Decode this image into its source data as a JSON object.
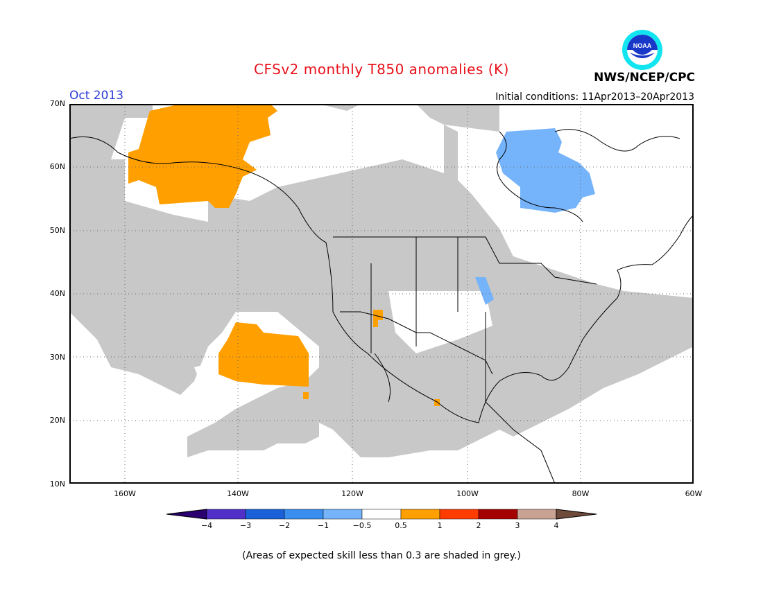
{
  "title": "CFSv2 monthly T850 anomalies (K)",
  "agency": "NWS/NCEP/CPC",
  "logo_text": "NOAA",
  "valid_month": "Oct 2013",
  "initial_conditions": "Initial conditions: 11Apr2013–20Apr2013",
  "footnote": "(Areas of expected skill less than 0.3 are shaded in grey.)",
  "map": {
    "lon_range": [
      "172W",
      "60W"
    ],
    "lat_range": [
      "10N",
      "70N"
    ],
    "lat_labels": [
      "70N",
      "60N",
      "50N",
      "40N",
      "30N",
      "20N",
      "10N"
    ],
    "lon_labels": [
      "160W",
      "140W",
      "120W",
      "100W",
      "80W",
      "60W"
    ],
    "low_skill_color": "#c8c8c8",
    "anomaly_regions": [
      {
        "region": "Alaska / Yukon",
        "category": "0.5 to 1",
        "color": "#ff9f00"
      },
      {
        "region": "Northeast Pacific near 30N 135W",
        "category": "0.5 to 1",
        "color": "#ff9f00"
      },
      {
        "region": "Southwest US near 36N 115W",
        "category": "0.5 to 1",
        "color": "#ff9f00"
      },
      {
        "region": "Western Mexico near 23N 105W",
        "category": "0.5 to 1",
        "color": "#ff9f00"
      },
      {
        "region": "Hudson Bay / northern Quebec",
        "category": "-1 to -0.5",
        "color": "#75b4fa"
      },
      {
        "region": "Iowa / Nebraska border",
        "category": "-1 to -0.5",
        "color": "#75b4fa"
      }
    ]
  },
  "colorbar": {
    "labels": [
      "−4",
      "−3",
      "−2",
      "−1",
      "−0.5",
      "0.5",
      "1",
      "2",
      "3",
      "4"
    ],
    "colors": [
      "#2a0070",
      "#5030c8",
      "#1a60d8",
      "#3a8ef0",
      "#75b4fa",
      "#ffffff",
      "#ff9f00",
      "#ff3c00",
      "#a50000",
      "#c9a293",
      "#6e4a3a"
    ]
  }
}
